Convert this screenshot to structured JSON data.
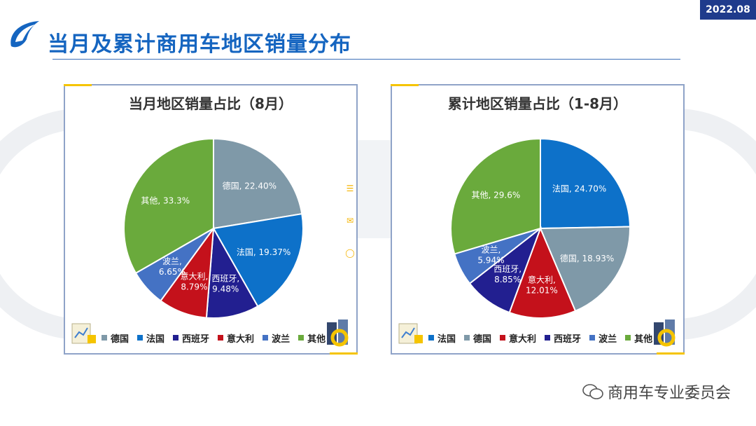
{
  "header": {
    "date_badge": "2022.08",
    "title": "当月及累计商用车地区销量分布"
  },
  "colors": {
    "德国": "#7f99a8",
    "法国": "#0d71c9",
    "西班牙": "#221f90",
    "意大利": "#c4111b",
    "波兰": "#4472c4",
    "其他": "#6aaa3c",
    "accent": "#1565c0",
    "badge": "#1f3b8c"
  },
  "chart_data": [
    {
      "type": "pie",
      "title": "当月地区销量占比（8月）",
      "slices": [
        {
          "name": "德国",
          "value": 22.4,
          "label": "德国, 22.40%"
        },
        {
          "name": "法国",
          "value": 19.37,
          "label": "法国, 19.37%"
        },
        {
          "name": "西班牙",
          "value": 9.48,
          "label": "西班牙, 9.48%"
        },
        {
          "name": "意大利",
          "value": 8.79,
          "label": "意大利, 8.79%"
        },
        {
          "name": "波兰",
          "value": 6.65,
          "label": "波兰, 6.65%"
        },
        {
          "name": "其他",
          "value": 33.3,
          "label": "其他, 33.3%"
        }
      ],
      "legend": [
        "德国",
        "法国",
        "西班牙",
        "意大利",
        "波兰",
        "其他"
      ]
    },
    {
      "type": "pie",
      "title": "累计地区销量占比（1-8月）",
      "slices": [
        {
          "name": "法国",
          "value": 24.7,
          "label": "法国, 24.70%"
        },
        {
          "name": "德国",
          "value": 18.93,
          "label": "德国, 18.93%"
        },
        {
          "name": "意大利",
          "value": 12.01,
          "label": "意大利, 12.01%"
        },
        {
          "name": "西班牙",
          "value": 8.85,
          "label": "西班牙, 8.85%"
        },
        {
          "name": "波兰",
          "value": 5.94,
          "label": "波兰, 5.94%"
        },
        {
          "name": "其他",
          "value": 29.6,
          "label": "其他, 29.6%"
        }
      ],
      "legend": [
        "法国",
        "德国",
        "意大利",
        "西班牙",
        "波兰",
        "其他"
      ]
    }
  ],
  "footer": {
    "source": "商用车专业委员会"
  }
}
